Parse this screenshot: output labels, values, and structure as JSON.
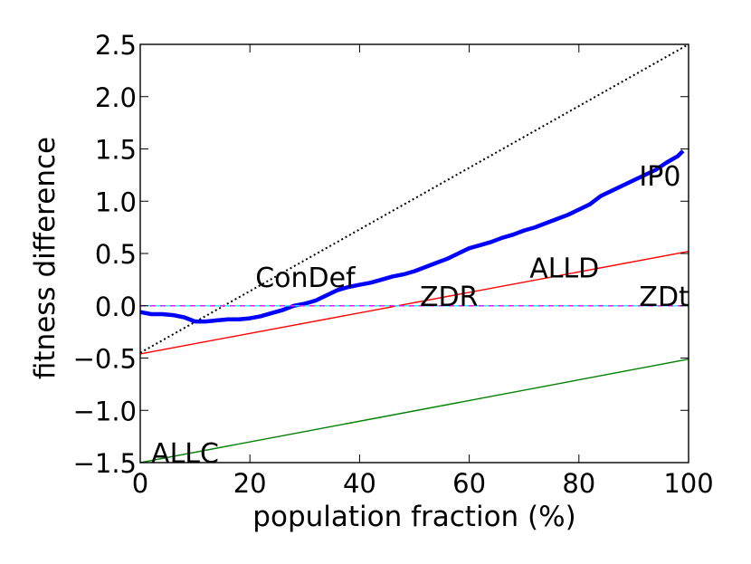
{
  "chart_data": {
    "type": "line",
    "xlabel": "population fraction (%)",
    "ylabel": "fitness difference",
    "xlim": [
      0,
      100
    ],
    "ylim": [
      -1.5,
      2.5
    ],
    "grid": false,
    "x_ticks": [
      0,
      20,
      40,
      60,
      80,
      100
    ],
    "y_ticks": [
      -1.5,
      -1.0,
      -0.5,
      0.0,
      0.5,
      1.0,
      1.5,
      2.0,
      2.5
    ],
    "x_tick_labels": [
      "0",
      "20",
      "40",
      "60",
      "80",
      "100"
    ],
    "y_tick_labels": [
      "−1.5",
      "−1.0",
      "−0.5",
      "0.0",
      "0.5",
      "1.0",
      "1.5",
      "2.0",
      "2.5"
    ],
    "series": [
      {
        "color": "#000000",
        "style": "dotted",
        "x": [
          0,
          100
        ],
        "y": [
          -0.45,
          2.5
        ]
      },
      {
        "color": "#0000ff",
        "style": "solid-thick",
        "x": [
          0,
          2,
          4,
          6,
          8,
          10,
          12,
          14,
          16,
          18,
          20,
          22,
          24,
          26,
          28,
          30,
          32,
          34,
          36,
          38,
          40,
          42,
          44,
          46,
          48,
          50,
          52,
          54,
          56,
          58,
          60,
          62,
          64,
          66,
          68,
          70,
          72,
          74,
          76,
          78,
          80,
          82,
          84,
          86,
          88,
          90,
          92,
          94,
          96,
          98,
          99
        ],
        "y": [
          -0.06,
          -0.08,
          -0.08,
          -0.09,
          -0.11,
          -0.15,
          -0.15,
          -0.14,
          -0.13,
          -0.13,
          -0.12,
          -0.1,
          -0.07,
          -0.04,
          0.0,
          0.02,
          0.05,
          0.1,
          0.15,
          0.18,
          0.2,
          0.22,
          0.25,
          0.28,
          0.3,
          0.33,
          0.37,
          0.41,
          0.45,
          0.5,
          0.55,
          0.58,
          0.61,
          0.65,
          0.68,
          0.72,
          0.75,
          0.79,
          0.83,
          0.87,
          0.92,
          0.97,
          1.05,
          1.1,
          1.15,
          1.2,
          1.25,
          1.3,
          1.37,
          1.43,
          1.48
        ]
      },
      {
        "color": "#ff0000",
        "style": "solid",
        "x": [
          0,
          100
        ],
        "y": [
          -0.46,
          0.52
        ]
      },
      {
        "color": "#008000",
        "style": "solid",
        "x": [
          0,
          100
        ],
        "y": [
          -1.5,
          -0.51
        ]
      },
      {
        "color": "#00ffff",
        "style": "solid",
        "x": [
          0,
          100
        ],
        "y": [
          0.0,
          0.0
        ]
      },
      {
        "color": "#ff00ff",
        "style": "dashed",
        "x": [
          0,
          100
        ],
        "y": [
          0.0,
          0.0
        ]
      }
    ],
    "annotations": [
      {
        "text": "ALLC",
        "x": 1,
        "y": -1.5
      },
      {
        "text": "ConDef",
        "x": 20,
        "y": 0.18
      },
      {
        "text": "ZDR",
        "x": 50,
        "y": 0.0
      },
      {
        "text": "ALLD",
        "x": 70,
        "y": 0.27
      },
      {
        "text": "ZDt",
        "x": 90,
        "y": 0.0
      },
      {
        "text": "IP0",
        "x": 90,
        "y": 1.15
      }
    ]
  }
}
